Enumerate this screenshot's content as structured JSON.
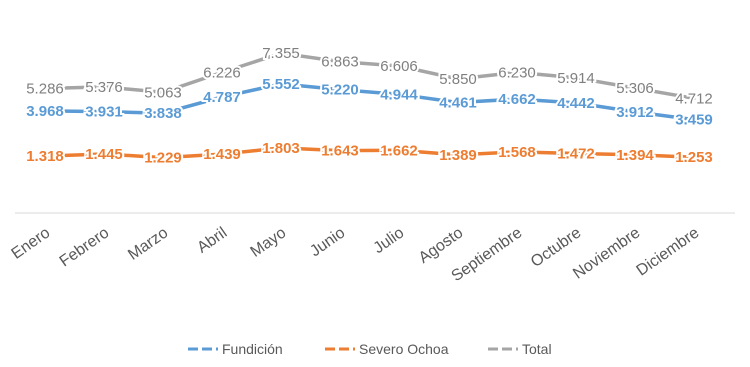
{
  "chart_data": {
    "type": "line",
    "title": "",
    "xlabel": "",
    "ylabel": "",
    "categories": [
      "Enero",
      "Febrero",
      "Marzo",
      "Abril",
      "Mayo",
      "Junio",
      "Julio",
      "Agosto",
      "Septiembre",
      "Octubre",
      "Noviembre",
      "Diciembre"
    ],
    "series": [
      {
        "name": "Fundición",
        "color": "#5B9BD5",
        "values": [
          3968,
          3931,
          3838,
          4787,
          5552,
          5220,
          4944,
          4461,
          4662,
          4442,
          3912,
          3459
        ],
        "labels": [
          "3.968",
          "3.931",
          "3.838",
          "4.787",
          "5.552",
          "5.220",
          "4.944",
          "4.461",
          "4.662",
          "4.442",
          "3.912",
          "3.459"
        ]
      },
      {
        "name": "Severo Ochoa",
        "color": "#ED7D31",
        "values": [
          1318,
          1445,
          1229,
          1439,
          1803,
          1643,
          1662,
          1389,
          1568,
          1472,
          1394,
          1253
        ],
        "labels": [
          "1.318",
          "1.445",
          "1.229",
          "1.439",
          "1.803",
          "1.643",
          "1.662",
          "1.389",
          "1.568",
          "1.472",
          "1.394",
          "1.253"
        ]
      },
      {
        "name": "Total",
        "color": "#A5A5A5",
        "values": [
          5286,
          5376,
          5063,
          6226,
          7355,
          6863,
          6606,
          5850,
          6230,
          5914,
          5306,
          4712
        ],
        "labels": [
          "5.286",
          "5.376",
          "5.063",
          "6.226",
          "7.355",
          "6.863",
          "6.606",
          "5.850",
          "6.230",
          "5.914",
          "5.306",
          "4.712"
        ]
      }
    ],
    "axis_line_color": "#D9D9D9",
    "grid": false,
    "legend_position": "bottom"
  }
}
